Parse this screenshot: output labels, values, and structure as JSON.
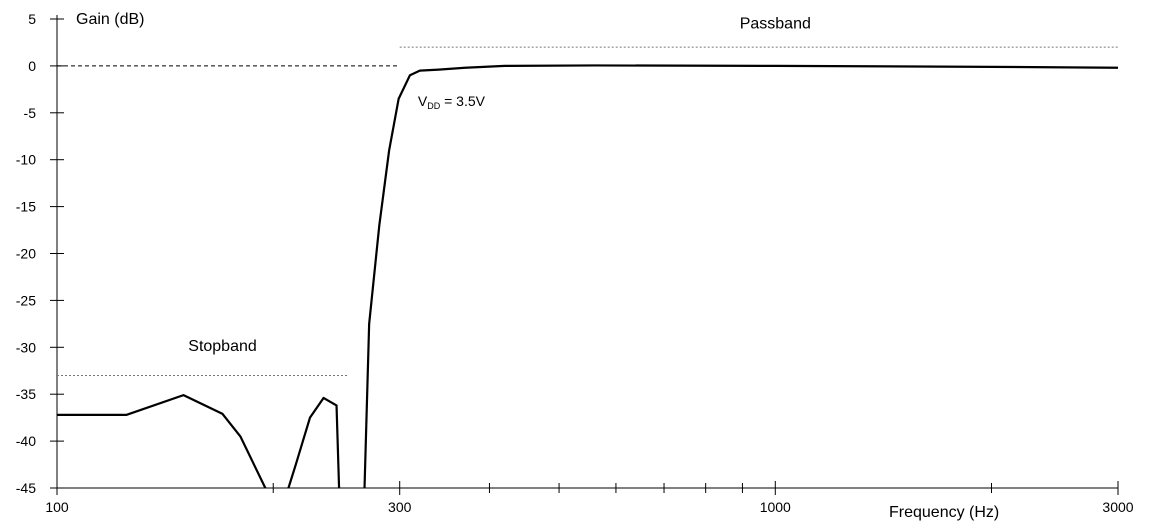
{
  "chart_data": {
    "type": "line",
    "ylabel": "Gain  (dB)",
    "xlabel": "Frequency  (Hz)",
    "x_scale": "log",
    "xlim": [
      100,
      3000
    ],
    "ylim": [
      -45,
      5
    ],
    "y_ticks": [
      5,
      0,
      -5,
      -10,
      -15,
      -20,
      -25,
      -30,
      -35,
      -40,
      -45
    ],
    "y_tick_labels": [
      "5",
      "0",
      "-5",
      "-10",
      "-15",
      "-20",
      "-25",
      "-30",
      "-35",
      "-40",
      "-45"
    ],
    "x_tick_labels": [
      {
        "value": 100,
        "label": "100"
      },
      {
        "value": 300,
        "label": "300"
      },
      {
        "value": 1000,
        "label": "1000"
      },
      {
        "value": 3000,
        "label": "3000"
      }
    ],
    "x_minor_ticks": [
      200,
      400,
      500,
      600,
      700,
      800,
      900,
      2000
    ],
    "grid": false,
    "series": [
      {
        "segments": [
          [
            [
              100,
              -37.2
            ],
            [
              125,
              -37.2
            ],
            [
              150,
              -35.1
            ],
            [
              170,
              -37.1
            ],
            [
              180,
              -39.5
            ],
            [
              195,
              -45
            ]
          ],
          [
            [
              210,
              -45
            ],
            [
              215,
              -42.5
            ],
            [
              225,
              -37.5
            ],
            [
              235,
              -35.4
            ],
            [
              245,
              -36.2
            ],
            [
              247,
              -45
            ]
          ],
          [
            [
              268,
              -45
            ],
            [
              272,
              -27.5
            ],
            [
              281,
              -17
            ],
            [
              290,
              -9
            ],
            [
              299,
              -3.5
            ],
            [
              310,
              -1.0
            ],
            [
              320,
              -0.5
            ],
            [
              340,
              -0.4
            ],
            [
              370,
              -0.2
            ],
            [
              420,
              0
            ],
            [
              560,
              0.05
            ],
            [
              1000,
              0
            ],
            [
              2000,
              -0.1
            ],
            [
              3000,
              -0.2
            ]
          ]
        ]
      }
    ],
    "reference_lines": [
      {
        "y": 0,
        "x_from": 100,
        "x_to": 300,
        "style": "dashed"
      },
      {
        "y": 2,
        "x_from": 300,
        "x_to": 3000,
        "style": "dotted"
      },
      {
        "y": -33,
        "x_from": 100,
        "x_to": 255,
        "style": "dotted"
      }
    ],
    "annotations": [
      {
        "text": "Passband",
        "x": 1000,
        "y": 4
      },
      {
        "text": "Stopband",
        "x": 170,
        "y": -30.4
      }
    ],
    "vdd_label": {
      "main": "V",
      "sub": "DD",
      "rest": " = 3.5V",
      "x": 318,
      "y": -4.3
    }
  }
}
